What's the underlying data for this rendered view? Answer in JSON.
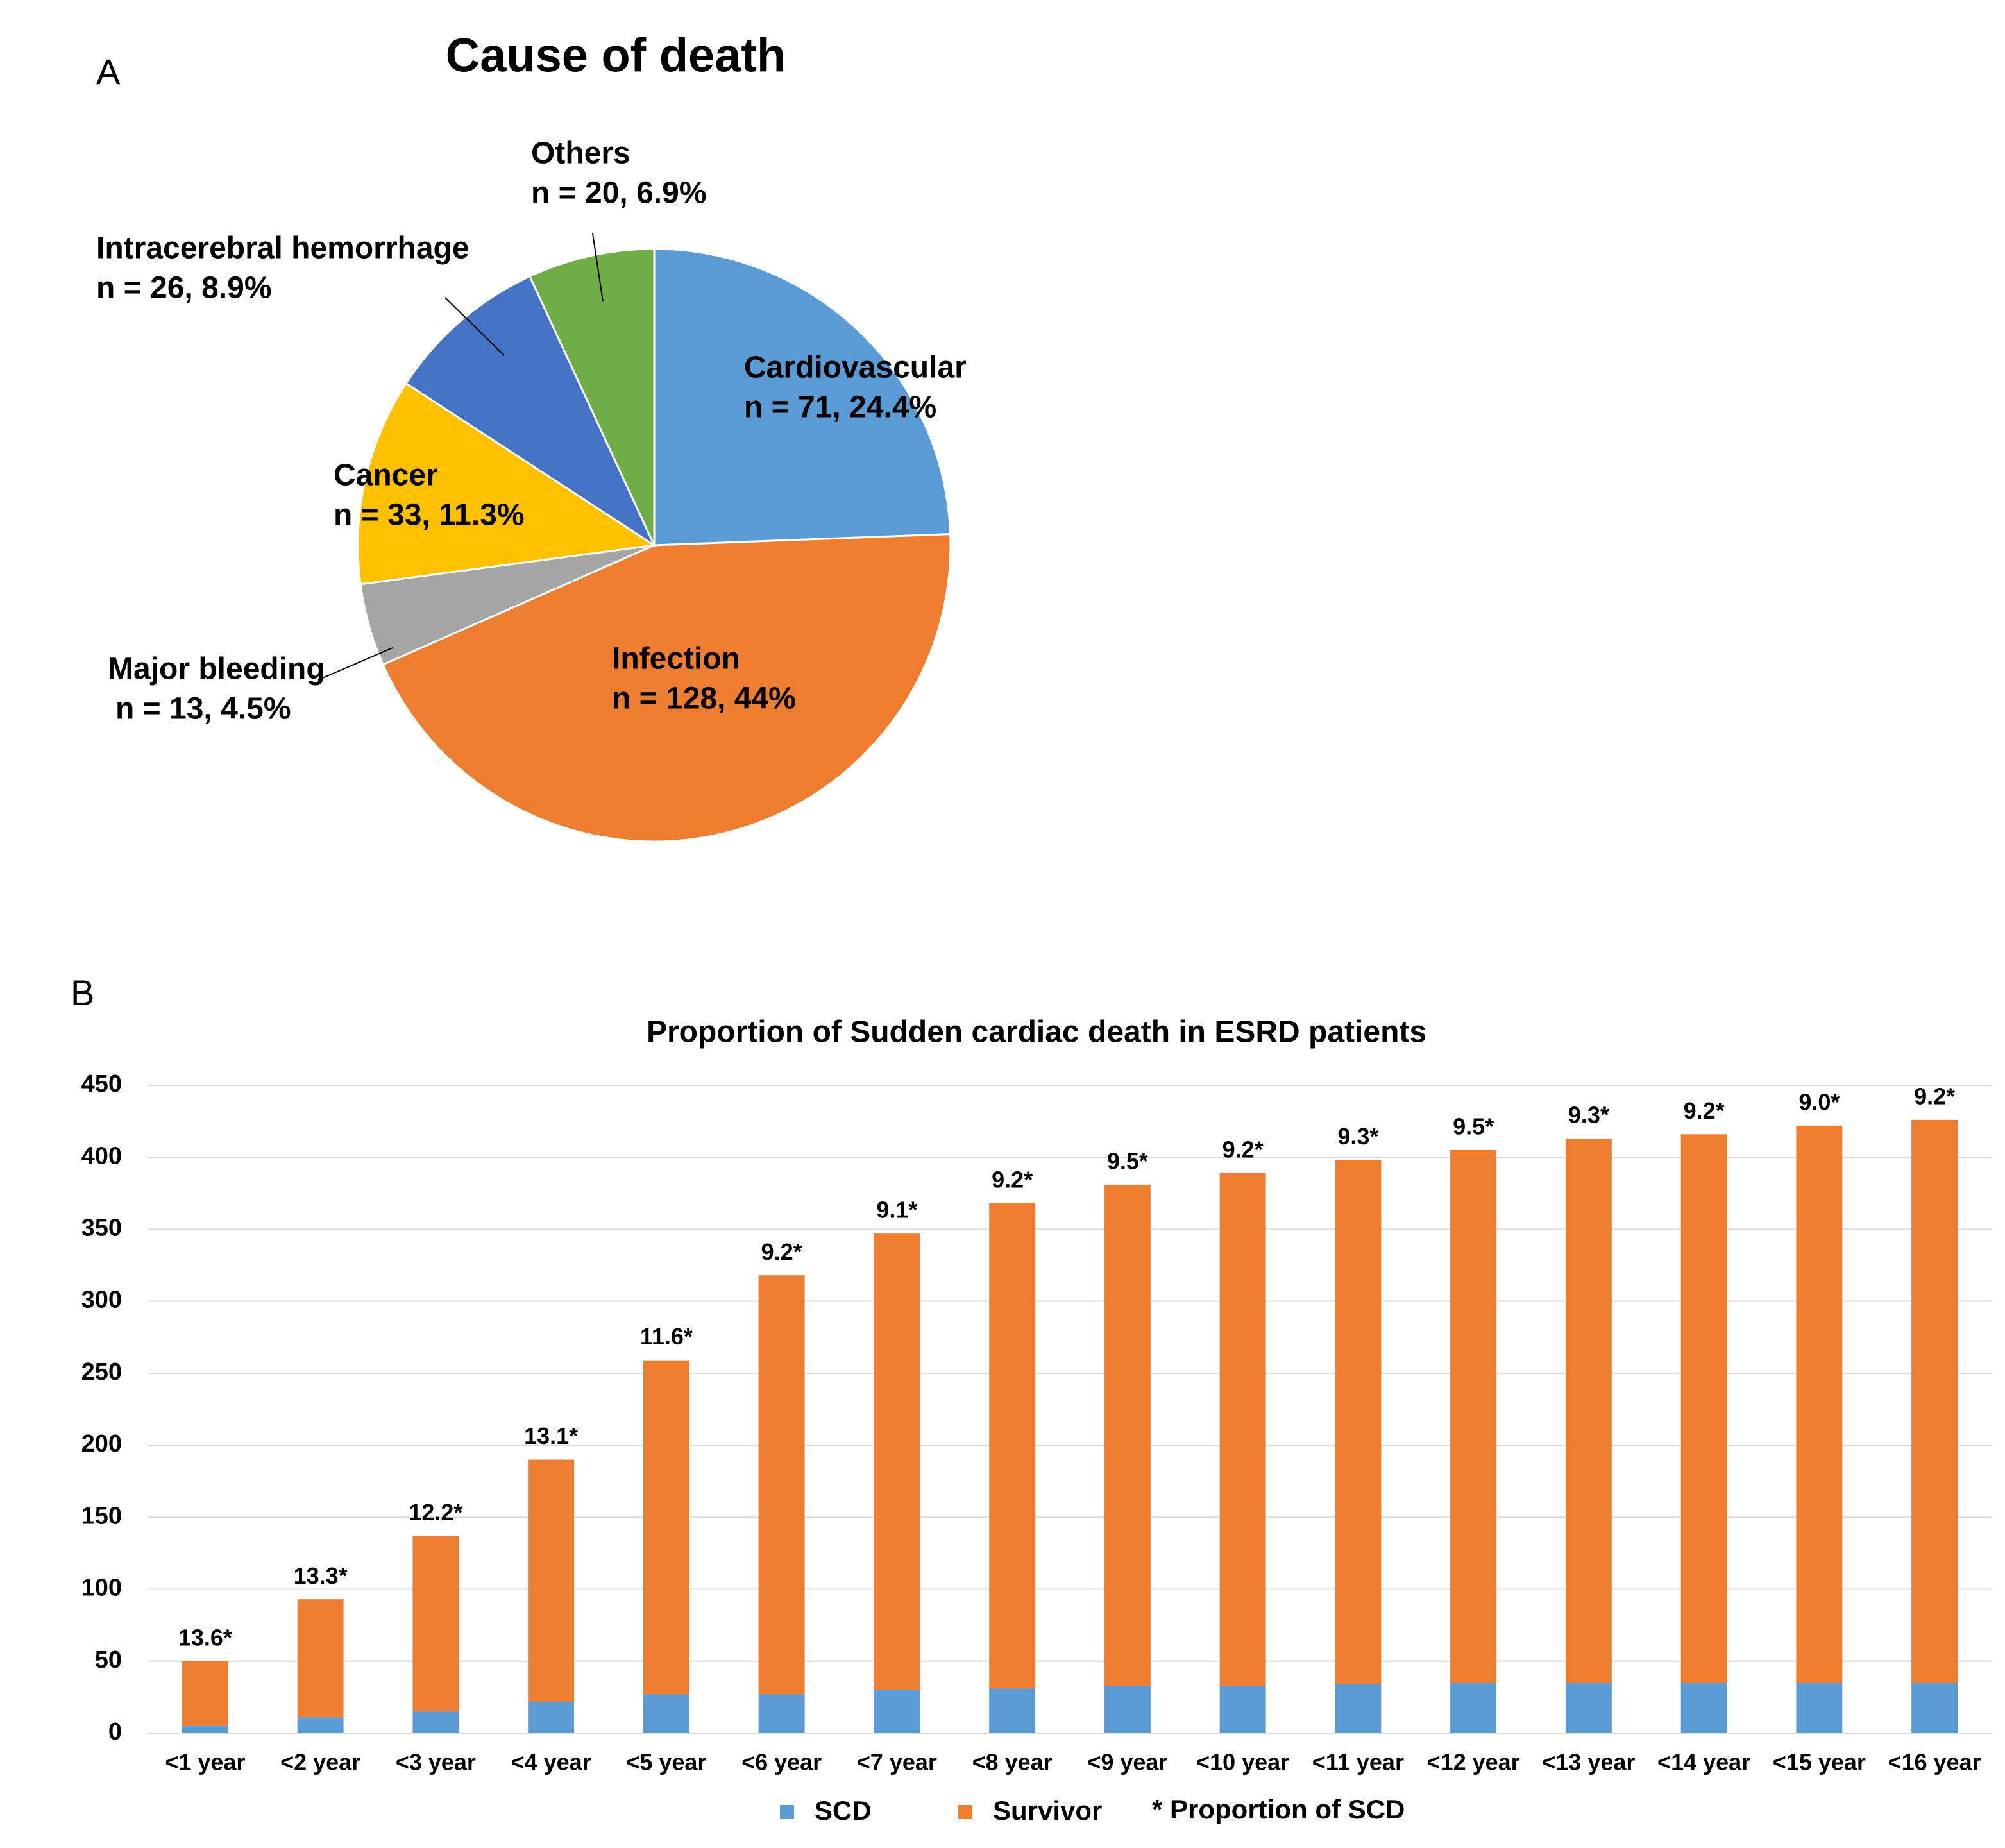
{
  "chart_data": [
    {
      "type": "pie",
      "panel_label": "A",
      "title": "Cause of death",
      "categories": [
        "Cardiovascular",
        "Infection",
        "Major bleeding",
        "Cancer",
        "Intracerebral hemorrhage",
        "Others"
      ],
      "values": [
        24.4,
        44,
        4.5,
        11.3,
        8.9,
        6.9
      ],
      "value_labels": [
        "n = 71, 24.4%",
        "n = 128, 44%",
        "n = 13, 4.5%",
        "n = 33, 11.3%",
        "n = 26, 8.9%",
        "n = 20, 6.9%"
      ],
      "colors": [
        "#5b9bd5",
        "#ed7d31",
        "#a5a5a5",
        "#ffc000",
        "#4472c4",
        "#70ad47"
      ]
    },
    {
      "type": "stacked_bar",
      "panel_label": "B",
      "title": "Proportion of Sudden cardiac death in ESRD patients",
      "categories": [
        "<1 year",
        "<2 year",
        "<3 year",
        "<4 year",
        "<5 year",
        "<6 year",
        "<7 year",
        "<8 year",
        "<9 year",
        "<10 year",
        "<11 year",
        "<12 year",
        "<13 year",
        "<14 year",
        "<15 year",
        "<16 year"
      ],
      "series": [
        {
          "name": "SCD",
          "color": "#5b9bd5",
          "values": [
            5,
            11,
            15,
            22,
            27,
            27,
            30,
            31,
            33,
            33,
            34,
            35,
            35,
            35,
            35,
            35
          ]
        },
        {
          "name": "Survivor",
          "color": "#ed7d31",
          "values": [
            45,
            82,
            122,
            168,
            232,
            291,
            317,
            337,
            348,
            356,
            364,
            370,
            378,
            381,
            387,
            391
          ]
        }
      ],
      "annotations": [
        "13.6*",
        "13.3*",
        "12.2*",
        "13.1*",
        "11.6*",
        "9.2*",
        "9.1*",
        "9.2*",
        "9.5*",
        "9.2*",
        "9.3*",
        "9.5*",
        "9.3*",
        "9.2*",
        "9.0*",
        "9.2*"
      ],
      "legend_note": "* Proportion of SCD",
      "ylim": [
        0,
        450
      ],
      "yticks": [
        0,
        50,
        100,
        150,
        200,
        250,
        300,
        350,
        400,
        450
      ],
      "grid": true
    }
  ]
}
